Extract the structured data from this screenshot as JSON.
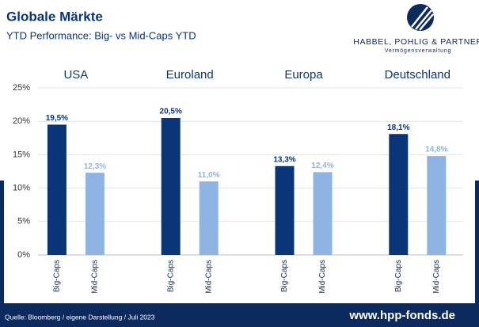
{
  "chart_data": {
    "type": "bar",
    "title": "Globale Märkte",
    "subtitle": "YTD Performance: Big- vs Mid-Caps YTD",
    "categories": [
      "USA",
      "Euroland",
      "Europa",
      "Deutschland"
    ],
    "series": [
      {
        "name": "Big-Caps",
        "color": "#0b3579",
        "values": [
          19.5,
          20.5,
          13.3,
          18.1
        ],
        "value_labels": [
          "19,5%",
          "20,5%",
          "13,3%",
          "18,1%"
        ]
      },
      {
        "name": "Mid-Caps",
        "color": "#8fb4e3",
        "values": [
          12.3,
          11.0,
          12.4,
          14.8
        ],
        "value_labels": [
          "12,3%",
          "11,0%",
          "12,4%",
          "14,8%"
        ]
      }
    ],
    "ylim": [
      0,
      25
    ],
    "yticks": [
      {
        "value": 0,
        "label": "0%"
      },
      {
        "value": 5,
        "label": "5%"
      },
      {
        "value": 10,
        "label": "10%"
      },
      {
        "value": 15,
        "label": "15%"
      },
      {
        "value": 20,
        "label": "20%"
      },
      {
        "value": 25,
        "label": "25%"
      }
    ],
    "grid": true,
    "logo": {
      "name": "HABBEL, POHLIG & PARTNER",
      "tagline": "Vermögensverwaltung"
    },
    "source": "Quelle: Bloomberg / eigene Darstellung / Juli 2023",
    "website": "www.hpp-fonds.de"
  }
}
